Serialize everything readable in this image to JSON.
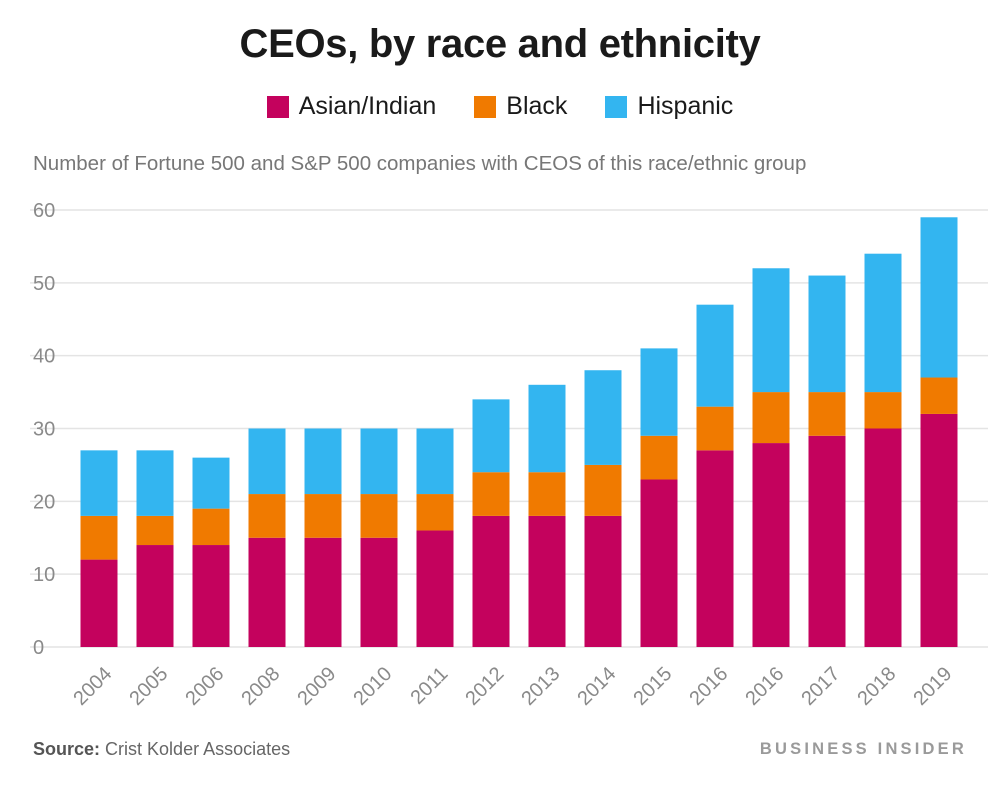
{
  "title": "CEOs, by race and ethnicity",
  "subtitle": "Number of Fortune 500 and S&P 500 companies with CEOS of this race/ethnic group",
  "source_label": "Source:",
  "source_text": "Crist Kolder Associates",
  "brand": "BUSINESS INSIDER",
  "colors": {
    "asian_indian": "#c4025d",
    "black": "#f07a00",
    "hispanic": "#33b5f0",
    "grid": "#e4e4e4",
    "tick_text": "#8a8a8a"
  },
  "chart_data": {
    "type": "bar",
    "stacked": true,
    "categories": [
      "2004",
      "2005",
      "2006",
      "2008",
      "2009",
      "2010",
      "2011",
      "2012",
      "2013",
      "2014",
      "2015",
      "2016",
      "2016",
      "2017",
      "2018",
      "2019"
    ],
    "series": [
      {
        "name": "Asian/Indian",
        "color": "#c4025d",
        "values": [
          12,
          14,
          14,
          15,
          15,
          15,
          16,
          18,
          18,
          18,
          23,
          27,
          28,
          29,
          30,
          32
        ]
      },
      {
        "name": "Black",
        "color": "#f07a00",
        "values": [
          6,
          4,
          5,
          6,
          6,
          6,
          5,
          6,
          6,
          7,
          6,
          6,
          7,
          6,
          5,
          5
        ]
      },
      {
        "name": "Hispanic",
        "color": "#33b5f0",
        "values": [
          9,
          9,
          7,
          9,
          9,
          9,
          9,
          10,
          12,
          13,
          12,
          14,
          17,
          16,
          19,
          22
        ]
      }
    ],
    "ylim": [
      0,
      60
    ],
    "yticks": [
      0,
      10,
      20,
      30,
      40,
      50,
      60
    ],
    "grid": true,
    "legend_position": "top-center"
  }
}
